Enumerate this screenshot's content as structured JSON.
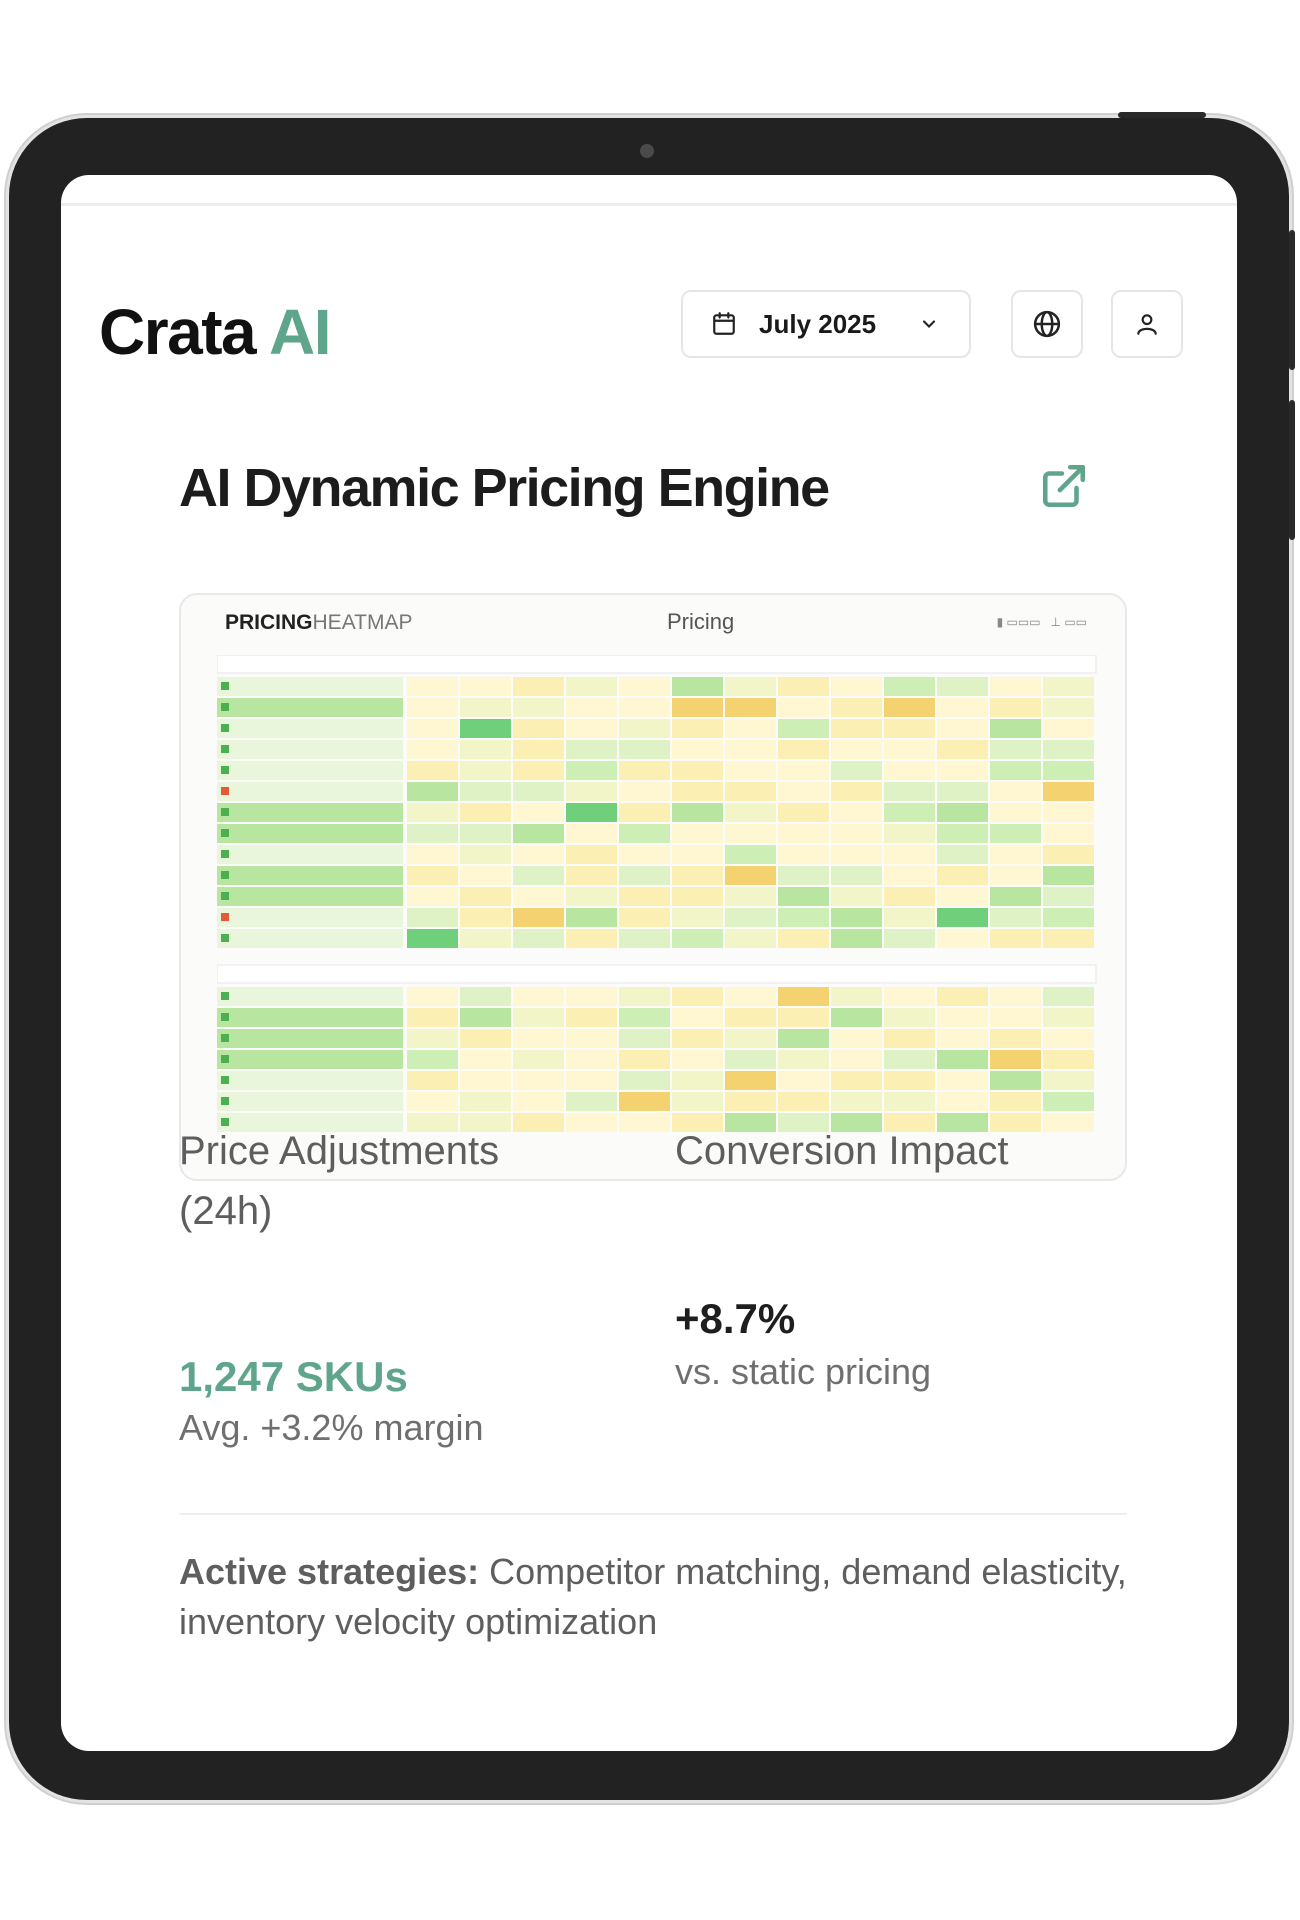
{
  "header": {
    "brand_main": "Crata",
    "brand_accent": "AI",
    "date_label": "July 2025"
  },
  "card": {
    "title": "AI Dynamic Pricing Engine",
    "heatmap": {
      "title_bold": "PRICING",
      "title_light": "HEATMAP",
      "center_label": "Pricing"
    },
    "metrics": [
      {
        "label_line1": "Price Adjustments",
        "label_line2": "(24h)",
        "value": "1,247 SKUs",
        "sub": "Avg. +3.2% margin"
      },
      {
        "label": "Conversion Impact",
        "value": "+8.7%",
        "sub": "vs. static pricing"
      }
    ],
    "strategies_lead": "Active strategies:",
    "strategies_text": "Competitor matching, demand elasticity, inventory velocity optimization"
  },
  "colors": {
    "brand_accent": "#5fa58c",
    "device_frame": "#222222"
  },
  "icons": [
    "calendar-icon",
    "chevron-down-icon",
    "globe-icon",
    "user-icon",
    "external-link-icon"
  ]
}
